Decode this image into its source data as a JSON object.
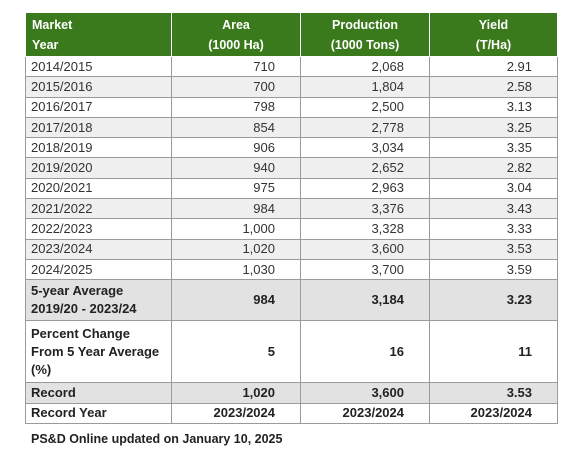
{
  "header": {
    "col1_line1": "Market",
    "col1_line2": "Year",
    "col2_line1": "Area",
    "col2_line2": "(1000 Ha)",
    "col3_line1": "Production",
    "col3_line2": "(1000 Tons)",
    "col4_line1": "Yield",
    "col4_line2": "(T/Ha)"
  },
  "rows": [
    {
      "year": "2014/2015",
      "area": "710",
      "production": "2,068",
      "yield": "2.91"
    },
    {
      "year": "2015/2016",
      "area": "700",
      "production": "1,804",
      "yield": "2.58"
    },
    {
      "year": "2016/2017",
      "area": "798",
      "production": "2,500",
      "yield": "3.13"
    },
    {
      "year": "2017/2018",
      "area": "854",
      "production": "2,778",
      "yield": "3.25"
    },
    {
      "year": "2018/2019",
      "area": "906",
      "production": "3,034",
      "yield": "3.35"
    },
    {
      "year": "2019/2020",
      "area": "940",
      "production": "2,652",
      "yield": "2.82"
    },
    {
      "year": "2020/2021",
      "area": "975",
      "production": "2,963",
      "yield": "3.04"
    },
    {
      "year": "2021/2022",
      "area": "984",
      "production": "3,376",
      "yield": "3.43"
    },
    {
      "year": "2022/2023",
      "area": "1,000",
      "production": "3,328",
      "yield": "3.33"
    },
    {
      "year": "2023/2024",
      "area": "1,020",
      "production": "3,600",
      "yield": "3.53"
    },
    {
      "year": "2024/2025",
      "area": "1,030",
      "production": "3,700",
      "yield": "3.59"
    }
  ],
  "average": {
    "label_line1": "5-year Average",
    "label_line2": "2019/20 - 2023/24",
    "area": "984",
    "production": "3,184",
    "yield": "3.23"
  },
  "percent_change": {
    "label_line1": "Percent Change",
    "label_line2": "From 5 Year Average",
    "label_line3": "(%)",
    "area": "5",
    "production": "16",
    "yield": "11"
  },
  "record": {
    "label": "Record",
    "area": "1,020",
    "production": "3,600",
    "yield": "3.53"
  },
  "record_year": {
    "label": "Record Year",
    "area": "2023/2024",
    "production": "2023/2024",
    "yield": "2023/2024"
  },
  "footnote": "PS&D Online updated on January 10, 2025"
}
